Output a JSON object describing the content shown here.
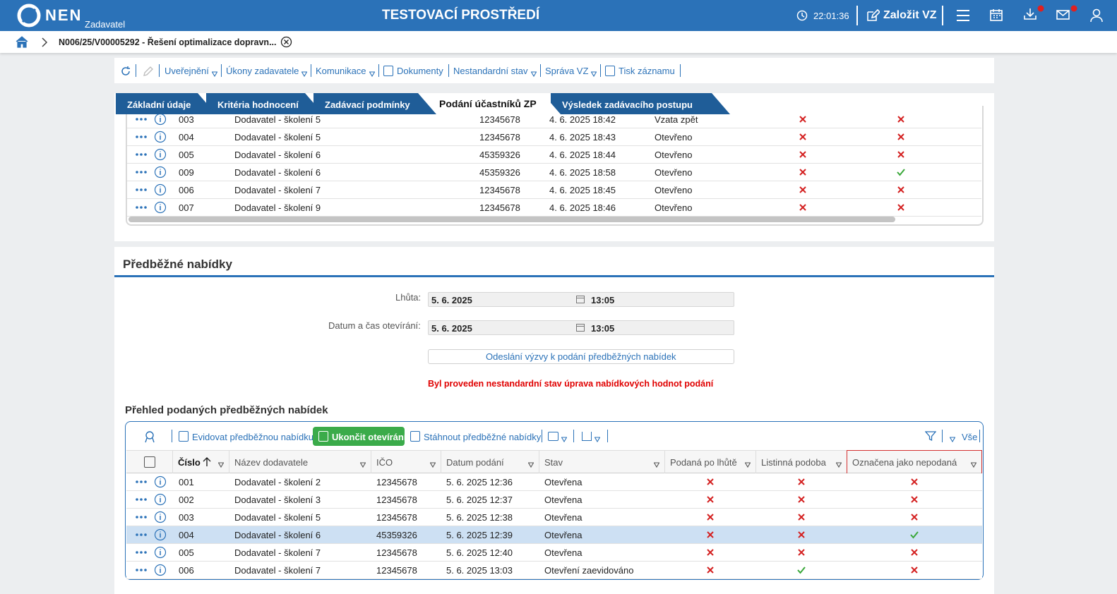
{
  "header": {
    "logo": "NEN",
    "role": "Zadavatel",
    "environment": "TESTOVACÍ PROSTŘEDÍ",
    "clock": "22:01:36",
    "create_button": "Založit VZ"
  },
  "breadcrumb": {
    "title": "N006/25/V00005292 - Řešení optimalizace dopravn..."
  },
  "toolbar": [
    {
      "label": "Uveřejnění",
      "menu": true
    },
    {
      "label": "Úkony zadavatele",
      "menu": true
    },
    {
      "label": "Komunikace",
      "menu": true
    },
    {
      "label": "Dokumenty",
      "menu": false
    },
    {
      "label": "Nestandardní stav",
      "menu": true
    },
    {
      "label": "Správa VZ",
      "menu": true
    },
    {
      "label": "Tisk záznamu",
      "menu": false
    }
  ],
  "tabs": {
    "items": [
      "Základní údaje",
      "Kritéria hodnocení",
      "Zadávací podmínky",
      "Podání účastníků ZP",
      "Výsledek zadávacího postupu"
    ],
    "active": 3
  },
  "submissions": {
    "rows": [
      {
        "cislo": "003",
        "nazev": "Dodavatel - školení 5",
        "ico": "12345678",
        "datum": "4. 6. 2025 18:42",
        "stav": "Vzata zpět",
        "marks": [
          false,
          false
        ]
      },
      {
        "cislo": "004",
        "nazev": "Dodavatel - školení 5",
        "ico": "12345678",
        "datum": "4. 6. 2025 18:43",
        "stav": "Otevřeno",
        "marks": [
          false,
          false
        ]
      },
      {
        "cislo": "005",
        "nazev": "Dodavatel - školení 6",
        "ico": "45359326",
        "datum": "4. 6. 2025 18:44",
        "stav": "Otevřeno",
        "marks": [
          false,
          false
        ]
      },
      {
        "cislo": "009",
        "nazev": "Dodavatel - školení 6",
        "ico": "45359326",
        "datum": "4. 6. 2025 18:58",
        "stav": "Otevřeno",
        "marks": [
          false,
          true
        ]
      },
      {
        "cislo": "006",
        "nazev": "Dodavatel - školení 7",
        "ico": "12345678",
        "datum": "4. 6. 2025 18:45",
        "stav": "Otevřeno",
        "marks": [
          false,
          false
        ]
      },
      {
        "cislo": "007",
        "nazev": "Dodavatel - školení 9",
        "ico": "12345678",
        "datum": "4. 6. 2025 18:46",
        "stav": "Otevřeno",
        "marks": [
          false,
          false
        ]
      }
    ]
  },
  "preliminary": {
    "title": "Předběžné nabídky",
    "deadline": {
      "label": "Lhůta:",
      "date": "5. 6. 2025",
      "time": "13:05"
    },
    "opening": {
      "label": "Datum a čas otevírání:",
      "date": "5. 6. 2025",
      "time": "13:05"
    },
    "invite_button": "Odeslání výzvy k podání předběžných nabídek",
    "warning": "Byl proveden nestandardní stav úprava nabídkových hodnot podání",
    "overview_title": "Přehled podaných předběžných nabídek",
    "actions": [
      "Evidovat předběžnou nabídku",
      "Ukončit otevírání",
      "Stáhnout předběžné nabídky"
    ],
    "filter_all": "Vše",
    "columns": [
      "Číslo",
      "Název dodavatele",
      "IČO",
      "Datum podání",
      "Stav",
      "Podaná po lhůtě",
      "Listinná podoba",
      "Označena jako nepodaná"
    ],
    "selected_row": 3,
    "rows": [
      {
        "cislo": "001",
        "nazev": "Dodavatel - školení 2",
        "ico": "12345678",
        "datum": "5. 6. 2025 12:36",
        "stav": "Otevřena",
        "marks": [
          false,
          false,
          false
        ]
      },
      {
        "cislo": "002",
        "nazev": "Dodavatel - školení 3",
        "ico": "12345678",
        "datum": "5. 6. 2025 12:37",
        "stav": "Otevřena",
        "marks": [
          false,
          false,
          false
        ]
      },
      {
        "cislo": "003",
        "nazev": "Dodavatel - školení 5",
        "ico": "12345678",
        "datum": "5. 6. 2025 12:38",
        "stav": "Otevřena",
        "marks": [
          false,
          false,
          false
        ]
      },
      {
        "cislo": "004",
        "nazev": "Dodavatel - školení 6",
        "ico": "45359326",
        "datum": "5. 6. 2025 12:39",
        "stav": "Otevřena",
        "marks": [
          false,
          false,
          true
        ]
      },
      {
        "cislo": "005",
        "nazev": "Dodavatel - školení 7",
        "ico": "12345678",
        "datum": "5. 6. 2025 12:40",
        "stav": "Otevřena",
        "marks": [
          false,
          false,
          false
        ]
      },
      {
        "cislo": "006",
        "nazev": "Dodavatel - školení 7",
        "ico": "12345678",
        "datum": "5. 6. 2025 13:03",
        "stav": "Otevření zaevidováno",
        "marks": [
          false,
          true,
          false
        ]
      }
    ]
  }
}
